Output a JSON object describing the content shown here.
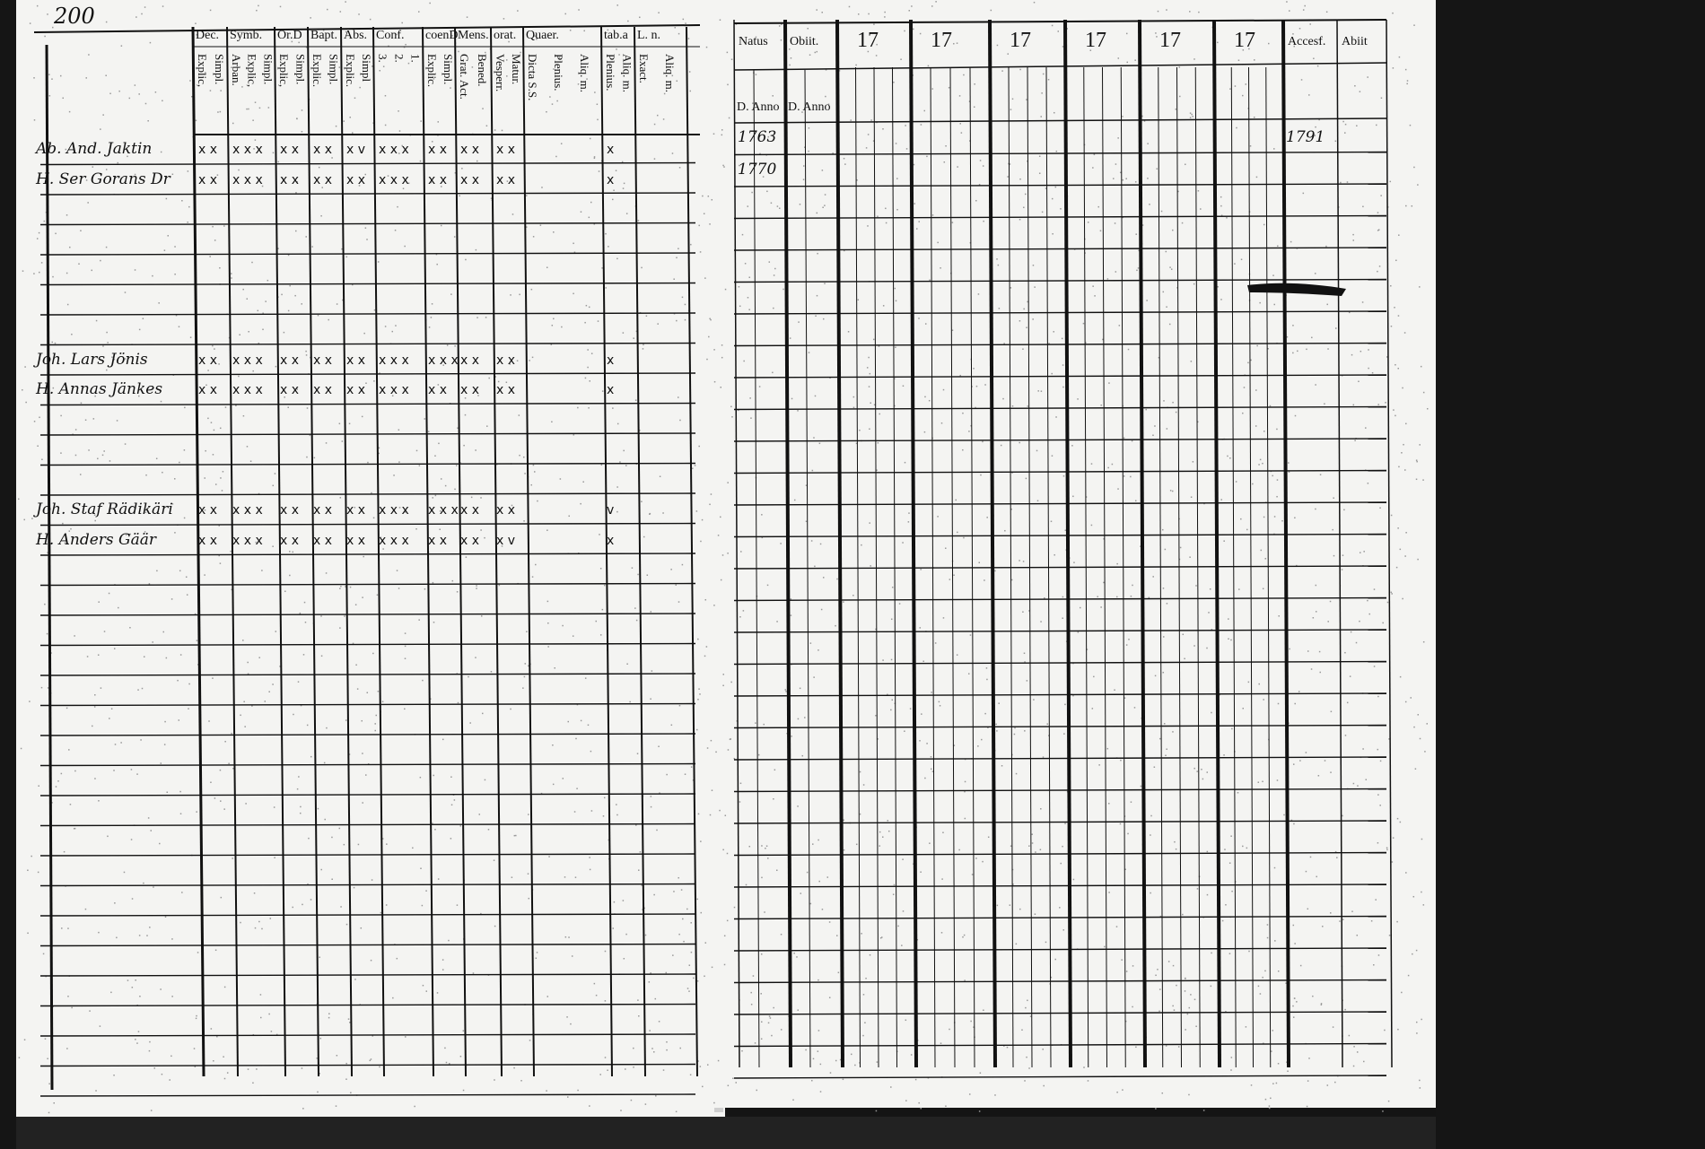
{
  "page_number": "200",
  "left": {
    "headers": [
      {
        "top": "Dec.",
        "sub": [
          "Explic,",
          "Simpl."
        ]
      },
      {
        "top": "Symb.",
        "sub": [
          "Arban.",
          "Explic,",
          "Simpl."
        ]
      },
      {
        "top": "Or.D",
        "sub": [
          "Explic,",
          "Simpl."
        ]
      },
      {
        "top": "Bapt.",
        "sub": [
          "Explic.",
          "Simpl."
        ]
      },
      {
        "top": "Abs.",
        "sub": [
          "Explic.",
          "Simpl"
        ]
      },
      {
        "top": "Conf.",
        "sub": [
          "3.",
          "2.",
          "1."
        ]
      },
      {
        "top": "coenD",
        "sub": [
          "Explic.",
          "Simpl."
        ]
      },
      {
        "top": "Mens.",
        "sub": [
          "Grat. Act.",
          "Bened."
        ]
      },
      {
        "top": "orat.",
        "sub": [
          "Vesperr.",
          "Matur."
        ]
      },
      {
        "top": "Quaer.",
        "sub": [
          "Dicta S.S.",
          "Plenius.",
          "Aliq. m."
        ]
      },
      {
        "top": "tab.a",
        "sub": [
          "Plenius.",
          "Aliq. m."
        ]
      },
      {
        "top": "L. n.",
        "sub": [
          "Exact.",
          "Aliq. m."
        ]
      }
    ],
    "entries": [
      {
        "row": 0,
        "name": "Ab. And. Jaktin",
        "marks": [
          "x x",
          "x x x",
          "x x",
          "x x",
          "x v",
          "x x x",
          "x x",
          "x x",
          "x x",
          "",
          "x",
          ""
        ]
      },
      {
        "row": 1,
        "name": "H. Ser Gorans Dr",
        "marks": [
          "x x",
          "x x x",
          "x x",
          "x x",
          "x x",
          "x x x",
          "x x",
          "x x",
          "x x",
          "",
          "x",
          ""
        ]
      },
      {
        "row": 7,
        "name": "Joh. Lars Jönis",
        "marks": [
          "x x",
          "x x x",
          "x x",
          "x x",
          "x x",
          "x x x",
          "x x x",
          "x x",
          "x x",
          "",
          "x",
          ""
        ]
      },
      {
        "row": 8,
        "name": "H. Annas Jänkes",
        "marks": [
          "x x",
          "x x x",
          "x x",
          "x x",
          "x x",
          "x x x",
          "x x",
          "x x",
          "x x",
          "",
          "x",
          ""
        ]
      },
      {
        "row": 12,
        "name": "Joh. Staf Rädikäri",
        "marks": [
          "x x",
          "x x x",
          "x x",
          "x x",
          "x x",
          "x x x",
          "x x x",
          "x x",
          "x x",
          "",
          "v",
          ""
        ]
      },
      {
        "row": 13,
        "name": "H. Anders Gäär",
        "marks": [
          "x x",
          "x x x",
          "x x",
          "x x",
          "x x",
          "x x x",
          "x x",
          "x x",
          "x v",
          "",
          "x",
          ""
        ]
      }
    ]
  },
  "right": {
    "headers": [
      "Natus",
      "Obiit.",
      "17",
      "17",
      "17",
      "17",
      "17",
      "17",
      "Accesf.",
      "Abiit"
    ],
    "subheaders": [
      "D. Anno",
      "D. Anno"
    ],
    "entries": [
      {
        "row": 0,
        "natus": "1763",
        "accessit": "1791"
      },
      {
        "row": 1,
        "natus": "1770",
        "accessit": ""
      }
    ]
  }
}
